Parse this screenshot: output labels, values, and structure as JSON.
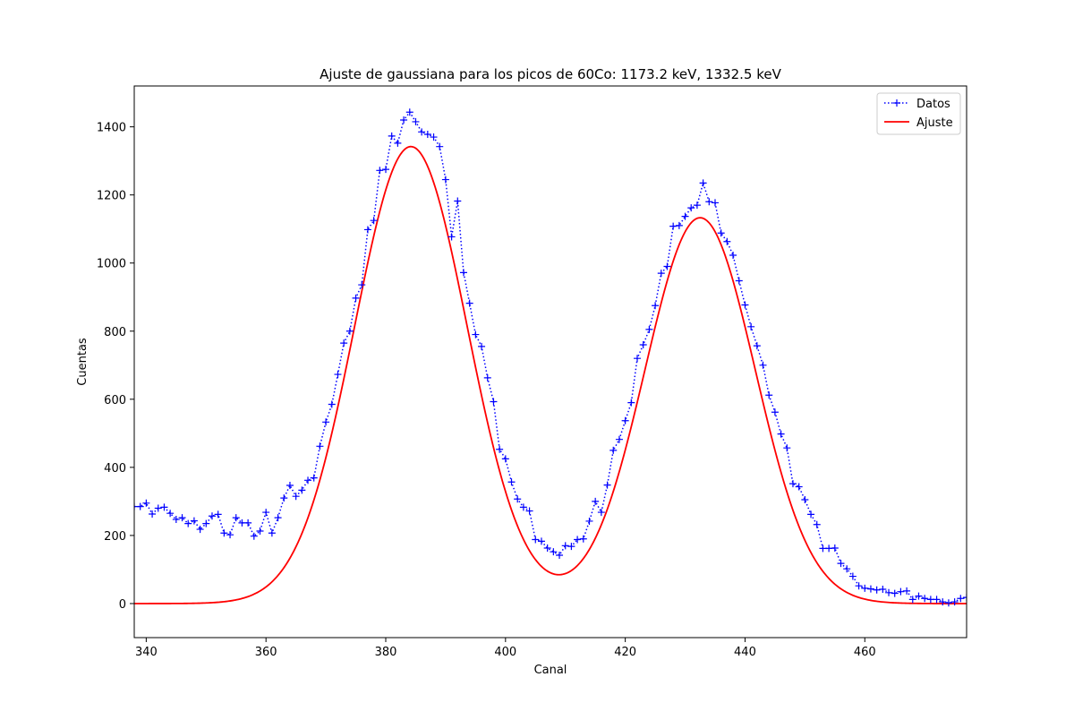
{
  "chart_data": {
    "type": "line",
    "title": "Ajuste de gaussiana para los picos de 60Co: 1173.2  keV, 1332.5  keV",
    "xlabel": "Canal",
    "ylabel": "Cuentas",
    "xlim": [
      338,
      477
    ],
    "ylim": [
      -100,
      1520
    ],
    "xticks": [
      340,
      360,
      380,
      400,
      420,
      440,
      460
    ],
    "yticks": [
      0,
      200,
      400,
      600,
      800,
      1000,
      1200,
      1400
    ],
    "grid": false,
    "legend_position": "top-right",
    "x_start": 338,
    "series": [
      {
        "name": "Datos",
        "color": "#0000ff",
        "style": "dotted-plus",
        "values": [
          285,
          285,
          295,
          263,
          280,
          283,
          265,
          247,
          252,
          235,
          243,
          218,
          235,
          257,
          262,
          207,
          202,
          252,
          237,
          237,
          198,
          213,
          268,
          207,
          252,
          310,
          347,
          315,
          333,
          362,
          369,
          462,
          533,
          585,
          673,
          765,
          800,
          897,
          936,
          1098,
          1125,
          1272,
          1275,
          1373,
          1352,
          1420,
          1443,
          1415,
          1385,
          1378,
          1370,
          1342,
          1245,
          1077,
          1182,
          972,
          882,
          790,
          755,
          663,
          593,
          453,
          425,
          357,
          307,
          283,
          272,
          188,
          183,
          163,
          152,
          142,
          170,
          168,
          188,
          190,
          242,
          300,
          268,
          348,
          450,
          482,
          537,
          590,
          720,
          760,
          805,
          875,
          970,
          990,
          1108,
          1110,
          1137,
          1162,
          1170,
          1235,
          1180,
          1177,
          1088,
          1063,
          1023,
          948,
          877,
          813,
          757,
          700,
          612,
          562,
          498,
          457,
          352,
          343,
          305,
          262,
          232,
          162,
          162,
          163,
          118,
          102,
          80,
          52,
          45,
          43,
          40,
          42,
          32,
          30,
          35,
          37,
          12,
          22,
          15,
          12,
          12,
          5,
          2,
          5,
          15,
          18
        ]
      },
      {
        "name": "Ajuste",
        "color": "#ff0000",
        "style": "solid",
        "model": {
          "peaks": [
            {
              "amplitude": 1342,
              "center": 384.2,
              "sigma": 9.4
            },
            {
              "amplitude": 1133,
              "center": 432.5,
              "sigma": 9.2
            }
          ],
          "x_range": [
            338,
            477
          ]
        }
      }
    ]
  }
}
